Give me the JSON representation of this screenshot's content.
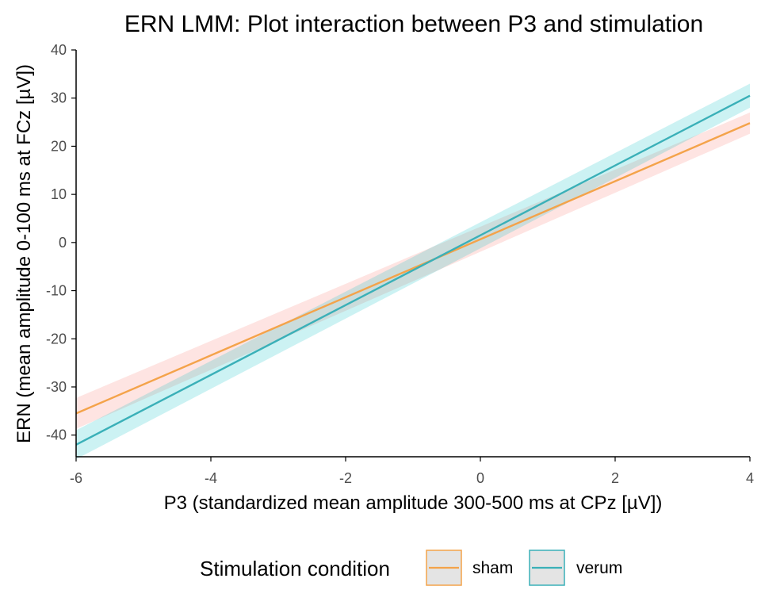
{
  "chart_data": {
    "type": "line",
    "title": "ERN LMM: Plot interaction between P3 and stimulation",
    "xlabel": "P3 (standardized mean amplitude 300-500 ms at CPz [µV])",
    "ylabel": "ERN (mean amplitude 0-100 ms at FCz [µV])",
    "xlim": [
      -6,
      4
    ],
    "ylim": [
      -44.5,
      40
    ],
    "x_ticks": [
      -6,
      -4,
      -2,
      0,
      2,
      4
    ],
    "y_ticks": [
      -40,
      -30,
      -20,
      -10,
      0,
      10,
      20,
      30,
      40
    ],
    "x_tick_labels": [
      "-6",
      "-4",
      "-2",
      "0",
      "2",
      "4"
    ],
    "y_tick_labels": [
      "-40",
      "-30",
      "-20",
      "-10",
      "0",
      "10",
      "20",
      "30",
      "40"
    ],
    "grid": false,
    "legend": {
      "title": "Stimulation condition",
      "position": "bottom"
    },
    "series": [
      {
        "name": "sham",
        "color": "#F4A34A",
        "ribbon_color": "#F8766D",
        "x": [
          -6,
          4
        ],
        "y": [
          -35.5,
          24.8
        ],
        "ci_lower": [
          -38.7,
          22.6
        ],
        "ci_upper": [
          -32.3,
          27.0
        ]
      },
      {
        "name": "verum",
        "color": "#3AB0B8",
        "ribbon_color": "#00BFC4",
        "x": [
          -6,
          4
        ],
        "y": [
          -42.0,
          30.5
        ],
        "ci_lower": [
          -45.0,
          28.0
        ],
        "ci_upper": [
          -39.0,
          33.0
        ]
      }
    ]
  }
}
